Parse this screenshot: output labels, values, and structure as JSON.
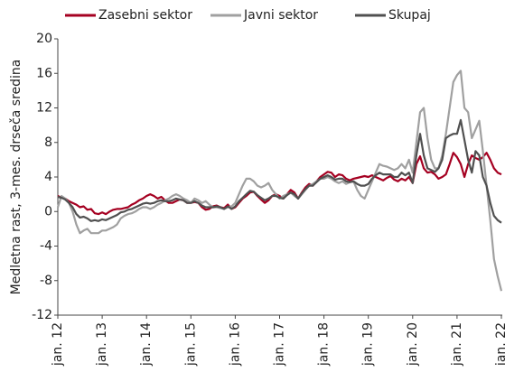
{
  "chart_data": {
    "type": "line",
    "y_label": "Medletna rast, 3-mes. drseča sredina",
    "categories": [
      "jan. 12",
      null,
      null,
      null,
      null,
      null,
      null,
      null,
      null,
      null,
      null,
      null,
      "jan. 13",
      null,
      null,
      null,
      null,
      null,
      null,
      null,
      null,
      null,
      null,
      null,
      "jan. 14",
      null,
      null,
      null,
      null,
      null,
      null,
      null,
      null,
      null,
      null,
      null,
      "jan. 15",
      null,
      null,
      null,
      null,
      null,
      null,
      null,
      null,
      null,
      null,
      null,
      "jan. 16",
      null,
      null,
      null,
      null,
      null,
      null,
      null,
      null,
      null,
      null,
      null,
      "jan. 17",
      null,
      null,
      null,
      null,
      null,
      null,
      null,
      null,
      null,
      null,
      null,
      "jan. 18",
      null,
      null,
      null,
      null,
      null,
      null,
      null,
      null,
      null,
      null,
      null,
      "jan. 19",
      null,
      null,
      null,
      null,
      null,
      null,
      null,
      null,
      null,
      null,
      null,
      "jan. 20",
      null,
      null,
      null,
      null,
      null,
      null,
      null,
      null,
      null,
      null,
      null,
      "jan. 21",
      null,
      null,
      null,
      null,
      null,
      null,
      null,
      null,
      null,
      null,
      null,
      "jan. 22"
    ],
    "series": [
      {
        "name": "Zasebni sektor",
        "color": "#a50021",
        "values": [
          1.8,
          1.6,
          1.5,
          1.2,
          1.0,
          0.8,
          0.5,
          0.6,
          0.2,
          0.3,
          -0.2,
          -0.3,
          -0.1,
          -0.3,
          0,
          0.2,
          0.3,
          0.3,
          0.4,
          0.5,
          0.8,
          1.0,
          1.3,
          1.5,
          1.8,
          2.0,
          1.8,
          1.5,
          1.7,
          1.3,
          1.0,
          1.0,
          1.2,
          1.4,
          1.3,
          1.0,
          1.0,
          1.1,
          1.0,
          0.5,
          0.2,
          0.3,
          0.6,
          0.7,
          0.5,
          0.4,
          0.8,
          0.3,
          0.5,
          1.0,
          1.5,
          1.8,
          2.2,
          2.3,
          1.8,
          1.4,
          1.0,
          1.3,
          1.8,
          2.0,
          1.8,
          1.5,
          2.0,
          2.5,
          2.2,
          1.5,
          2.2,
          2.8,
          3.2,
          3.0,
          3.5,
          4.0,
          4.3,
          4.6,
          4.5,
          4.0,
          4.3,
          4.2,
          3.8,
          3.6,
          3.8,
          3.9,
          4.0,
          4.1,
          4.0,
          4.2,
          4.0,
          3.8,
          3.6,
          3.9,
          4.1,
          3.7,
          3.5,
          3.8,
          3.6,
          4.0,
          3.3,
          5.5,
          6.4,
          5.0,
          4.5,
          4.6,
          4.3,
          3.8,
          4.0,
          4.3,
          5.5,
          6.8,
          6.3,
          5.5,
          4.0,
          5.5,
          6.5,
          6.2,
          6.0,
          6.3,
          6.8,
          6.0,
          5.0,
          4.5,
          4.3
        ]
      },
      {
        "name": "Javni sektor",
        "color": "#a0a0a0",
        "values": [
          0.5,
          1.8,
          1.5,
          1.0,
          0,
          -1.5,
          -2.5,
          -2.2,
          -2.0,
          -2.5,
          -2.5,
          -2.5,
          -2.2,
          -2.2,
          -2.0,
          -1.8,
          -1.5,
          -0.8,
          -0.5,
          -0.3,
          -0.2,
          0,
          0.3,
          0.5,
          0.5,
          0.3,
          0.5,
          0.8,
          1.0,
          1.3,
          1.5,
          1.8,
          2.0,
          1.8,
          1.5,
          1.3,
          1.0,
          1.5,
          1.3,
          1.0,
          1.2,
          0.8,
          0.5,
          0.5,
          0.4,
          0.3,
          0.5,
          0.6,
          1.0,
          2.0,
          3.0,
          3.8,
          3.8,
          3.5,
          3.0,
          2.8,
          3.0,
          3.3,
          2.5,
          2.0,
          1.5,
          1.8,
          2.0,
          2.2,
          1.8,
          1.5,
          2.0,
          2.5,
          3.0,
          3.2,
          3.5,
          3.8,
          3.8,
          4.0,
          3.8,
          3.5,
          3.3,
          3.5,
          3.2,
          3.4,
          3.5,
          2.5,
          1.8,
          1.5,
          2.5,
          3.5,
          4.5,
          5.5,
          5.3,
          5.2,
          5.0,
          4.8,
          5.0,
          5.5,
          5.0,
          6.0,
          4.5,
          8.0,
          11.5,
          12.0,
          8.5,
          6.0,
          5.0,
          5.0,
          6.5,
          9.0,
          12.0,
          15.0,
          15.8,
          16.3,
          12.0,
          11.5,
          8.5,
          9.5,
          10.5,
          7.0,
          3.0,
          -1.0,
          -5.5,
          -7.5,
          -9.2
        ]
      },
      {
        "name": "Skupaj",
        "color": "#505050",
        "values": [
          1.7,
          1.6,
          1.4,
          1.0,
          0.5,
          -0.3,
          -0.7,
          -0.6,
          -0.8,
          -1.1,
          -1.0,
          -1.1,
          -0.9,
          -1.0,
          -0.8,
          -0.6,
          -0.4,
          -0.1,
          0,
          0.2,
          0.3,
          0.5,
          0.7,
          0.9,
          1.0,
          0.9,
          1.0,
          1.2,
          1.3,
          1.2,
          1.2,
          1.3,
          1.5,
          1.4,
          1.3,
          1.0,
          1.0,
          1.2,
          1.0,
          0.7,
          0.5,
          0.5,
          0.5,
          0.6,
          0.5,
          0.3,
          0.6,
          0.3,
          0.6,
          1.2,
          1.6,
          2.0,
          2.4,
          2.3,
          1.9,
          1.6,
          1.3,
          1.5,
          1.8,
          1.8,
          1.6,
          1.5,
          1.9,
          2.2,
          2.0,
          1.5,
          2.1,
          2.6,
          3.0,
          3.0,
          3.4,
          3.8,
          4.0,
          4.2,
          4.0,
          3.7,
          3.8,
          3.8,
          3.5,
          3.4,
          3.5,
          3.2,
          3.0,
          3.0,
          3.2,
          3.8,
          4.2,
          4.5,
          4.3,
          4.3,
          4.3,
          4.0,
          4.0,
          4.5,
          4.2,
          4.5,
          3.3,
          6.5,
          9.0,
          6.5,
          5.0,
          4.8,
          4.6,
          5.0,
          6.0,
          8.5,
          8.8,
          9.0,
          9.0,
          10.6,
          8.3,
          6.0,
          4.5,
          7.0,
          6.5,
          4.0,
          3.0,
          1.0,
          -0.5,
          -1.0,
          -1.3
        ]
      }
    ],
    "ylim": [
      -12,
      20
    ],
    "yticks": [
      -12,
      -8,
      -4,
      0,
      4,
      8,
      12,
      16,
      20
    ],
    "grid": false
  }
}
